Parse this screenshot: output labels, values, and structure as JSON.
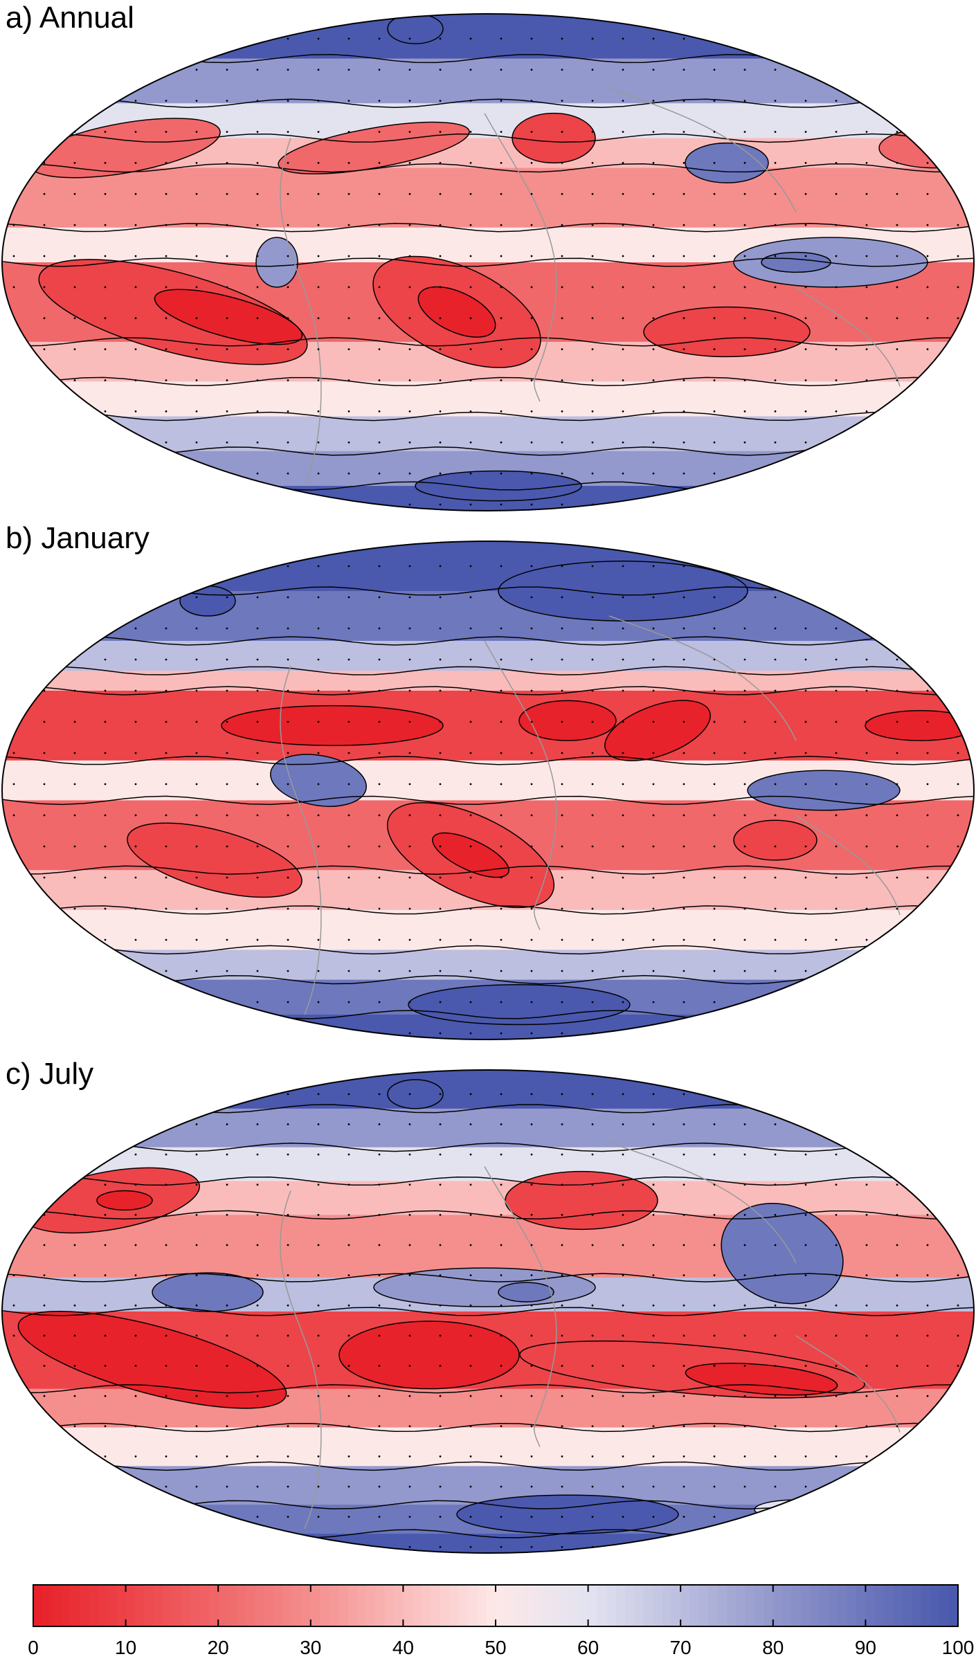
{
  "panels": [
    {
      "title": "a) Annual",
      "id": "annual"
    },
    {
      "title": "b) January",
      "id": "january"
    },
    {
      "title": "c) July",
      "id": "july"
    }
  ],
  "colorbar": {
    "ticks": [
      "0",
      "10",
      "20",
      "30",
      "40",
      "50",
      "60",
      "70",
      "80",
      "90",
      "100"
    ],
    "colors": [
      "#e8222a",
      "#ec4449",
      "#f0686a",
      "#f48f8e",
      "#f9bcbb",
      "#fde8e8",
      "#e3e3f0",
      "#bcbfdf",
      "#9399cc",
      "#6e78bd",
      "#4a59ad"
    ]
  },
  "chart_data": {
    "type": "heatmap",
    "projection": "robinson",
    "value_range": [
      0,
      100
    ],
    "colorbar_ticks": [
      0,
      10,
      20,
      30,
      40,
      50,
      60,
      70,
      80,
      90,
      100
    ],
    "colormap": "red-white-blue",
    "panels": [
      "a) Annual",
      "b) January",
      "c) July"
    ]
  }
}
